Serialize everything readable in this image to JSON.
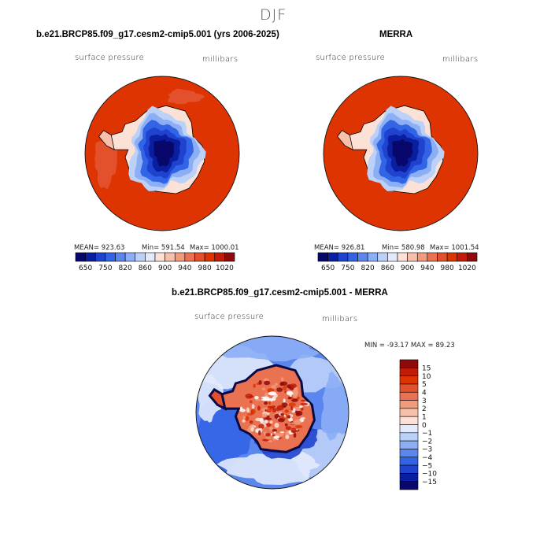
{
  "figure": {
    "title": "DJF",
    "colors": {
      "ocean_fill": "#dd3402",
      "blue_palette": [
        "#08076b",
        "#0a1fa0",
        "#1f43cf",
        "#3264e6",
        "#5b86ee",
        "#8baef5",
        "#bcd1f8",
        "#e2eafb"
      ],
      "red_palette": [
        "#fbe1d6",
        "#f7c0aa",
        "#f19a7c",
        "#ea7250",
        "#e3502c",
        "#dd3402",
        "#c11c07",
        "#8f0a0a"
      ]
    }
  },
  "chart_data": [
    {
      "type": "heatmap",
      "projection": "south-polar-stereographic",
      "title": "b.e21.BRCP85.f09_g17.cesm2-cmip5.001 (yrs 2006-2025)",
      "variable_label": "surface pressure",
      "units_label": "millibars",
      "stats": {
        "mean": "MEAN= 923.63",
        "min": "Min= 591.54",
        "max": "Max= 1000.01"
      },
      "colorbar": {
        "orientation": "horizontal",
        "levels": [
          650,
          700,
          750,
          800,
          820,
          840,
          860,
          880,
          900,
          920,
          940,
          960,
          980,
          1000,
          1020
        ],
        "tick_labels": [
          "650",
          "750",
          "820",
          "860",
          "900",
          "940",
          "980",
          "1020"
        ]
      }
    },
    {
      "type": "heatmap",
      "projection": "south-polar-stereographic",
      "title": "MERRA",
      "variable_label": "surface pressure",
      "units_label": "millibars",
      "stats": {
        "mean": "MEAN= 926.81",
        "min": "Min= 580.98",
        "max": "Max= 1001.54"
      },
      "colorbar": {
        "orientation": "horizontal",
        "levels": [
          650,
          700,
          750,
          800,
          820,
          840,
          860,
          880,
          900,
          920,
          940,
          960,
          980,
          1000,
          1020
        ],
        "tick_labels": [
          "650",
          "750",
          "820",
          "860",
          "900",
          "940",
          "980",
          "1020"
        ]
      }
    },
    {
      "type": "heatmap",
      "projection": "south-polar-stereographic",
      "title": "b.e21.BRCP85.f09_g17.cesm2-cmip5.001 - MERRA",
      "variable_label": "surface pressure",
      "units_label": "millibars",
      "stats": {
        "range": "MIN = -93.17 MAX =  89.23"
      },
      "colorbar": {
        "orientation": "vertical",
        "levels": [
          15,
          10,
          5,
          4,
          3,
          2,
          1,
          0,
          -1,
          -2,
          -3,
          -4,
          -5,
          -10,
          -15
        ],
        "tick_labels": [
          "15",
          "10",
          "5",
          "4",
          "3",
          "2",
          "1",
          "0",
          "−1",
          "−2",
          "−3",
          "−4",
          "−5",
          "−10",
          "−15"
        ],
        "colors": [
          "#8f0a0a",
          "#c11c07",
          "#dd3402",
          "#e3502c",
          "#ea7250",
          "#f19a7c",
          "#f7c0aa",
          "#fbe1d6",
          "#e2eafb",
          "#bcd1f8",
          "#8baef5",
          "#5b86ee",
          "#3264e6",
          "#1f43cf",
          "#0a1fa0",
          "#08076b"
        ]
      }
    }
  ]
}
